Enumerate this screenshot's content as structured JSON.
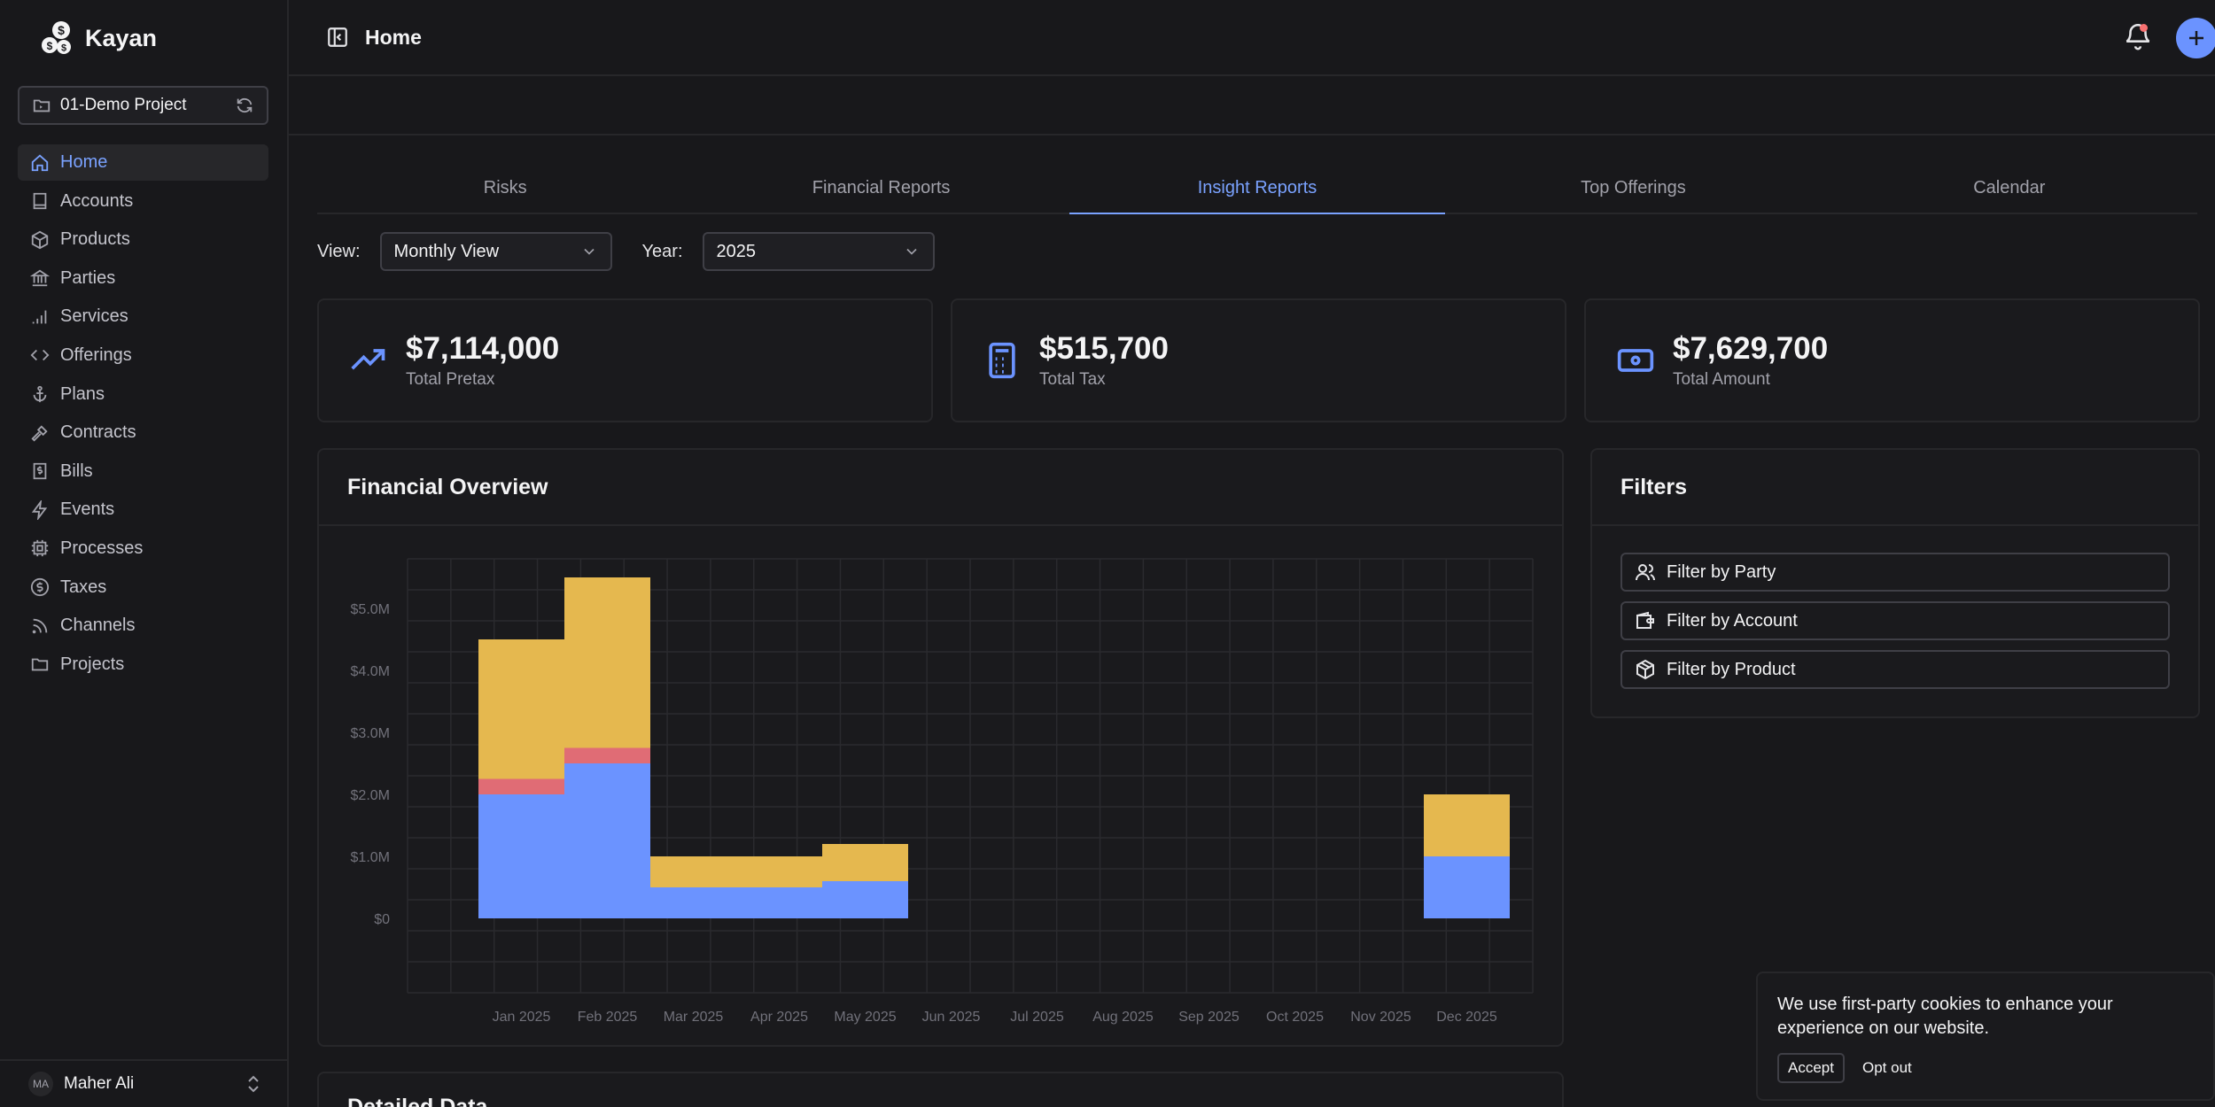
{
  "brand": {
    "name": "Kayan"
  },
  "project": {
    "name": "01-Demo Project"
  },
  "sidebar": {
    "items": [
      {
        "label": "Home",
        "icon": "home-icon",
        "active": true
      },
      {
        "label": "Accounts",
        "icon": "book-icon"
      },
      {
        "label": "Products",
        "icon": "box-icon"
      },
      {
        "label": "Parties",
        "icon": "bank-icon"
      },
      {
        "label": "Services",
        "icon": "signal-icon"
      },
      {
        "label": "Offerings",
        "icon": "code-icon"
      },
      {
        "label": "Plans",
        "icon": "anchor-icon"
      },
      {
        "label": "Contracts",
        "icon": "gavel-icon"
      },
      {
        "label": "Bills",
        "icon": "receipt-dollar-icon"
      },
      {
        "label": "Events",
        "icon": "bolt-icon"
      },
      {
        "label": "Processes",
        "icon": "cpu-icon"
      },
      {
        "label": "Taxes",
        "icon": "dollar-circle-icon"
      },
      {
        "label": "Channels",
        "icon": "rss-icon"
      },
      {
        "label": "Projects",
        "icon": "folder-icon"
      }
    ]
  },
  "user": {
    "initials": "MA",
    "name": "Maher Ali"
  },
  "header": {
    "title": "Home"
  },
  "tabs": [
    {
      "label": "Risks"
    },
    {
      "label": "Financial Reports"
    },
    {
      "label": "Insight Reports",
      "active": true
    },
    {
      "label": "Top Offerings"
    },
    {
      "label": "Calendar"
    }
  ],
  "controls": {
    "view_label": "View:",
    "view_value": "Monthly View",
    "year_label": "Year:",
    "year_value": "2025"
  },
  "kpis": [
    {
      "value": "$7,114,000",
      "label": "Total Pretax",
      "icon": "trending-up-icon"
    },
    {
      "value": "$515,700",
      "label": "Total Tax",
      "icon": "calculator-icon"
    },
    {
      "value": "$7,629,700",
      "label": "Total Amount",
      "icon": "banknote-icon"
    }
  ],
  "chart": {
    "title": "Financial Overview"
  },
  "chart_data": {
    "type": "bar",
    "stacked": true,
    "categories": [
      "Jan 2025",
      "Feb 2025",
      "Mar 2025",
      "Apr 2025",
      "May 2025",
      "Jun 2025",
      "Jul 2025",
      "Aug 2025",
      "Sep 2025",
      "Oct 2025",
      "Nov 2025",
      "Dec 2025"
    ],
    "series": [
      {
        "values": [
          2.0,
          2.5,
          0.5,
          0.5,
          0.6,
          0,
          0,
          0,
          0,
          0,
          0,
          1.0
        ],
        "color": "#6b93ff"
      },
      {
        "values": [
          0.25,
          0.25,
          0,
          0,
          0,
          0,
          0,
          0,
          0,
          0,
          0,
          0
        ],
        "color": "#e06c75"
      },
      {
        "values": [
          2.25,
          2.75,
          0.5,
          0.5,
          0.6,
          0,
          0,
          0,
          0,
          0,
          0,
          1.0
        ],
        "color": "#e5b84f"
      }
    ],
    "y_ticks": [
      "$0",
      "$1.0M",
      "$2.0M",
      "$3.0M",
      "$4.0M",
      "$5.0M"
    ],
    "ylim": [
      -1.2,
      5.8
    ],
    "grid": true
  },
  "filters": {
    "title": "Filters",
    "items": [
      {
        "label": "Filter by Party",
        "icon": "users-icon"
      },
      {
        "label": "Filter by Account",
        "icon": "wallet-icon"
      },
      {
        "label": "Filter by Product",
        "icon": "package-icon"
      }
    ]
  },
  "detail": {
    "title": "Detailed Data"
  },
  "cookie": {
    "text": "We use first-party cookies to enhance your experience on our website.",
    "accept": "Accept",
    "optout": "Opt out"
  }
}
